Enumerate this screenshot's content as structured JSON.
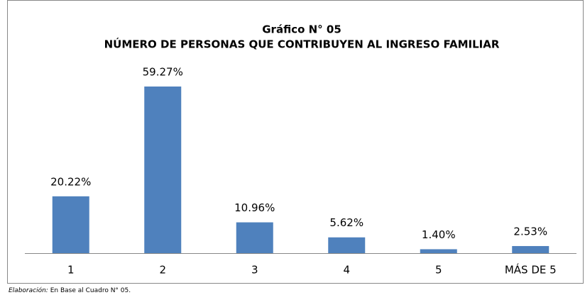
{
  "chart_data": {
    "type": "bar",
    "title": "Gráfico N° 05",
    "subtitle": "NÚMERO DE PERSONAS QUE CONTRIBUYEN AL INGRESO FAMILIAR",
    "categories": [
      "1",
      "2",
      "3",
      "4",
      "5",
      "MÁS DE 5"
    ],
    "values": [
      20.22,
      59.27,
      10.96,
      5.62,
      1.4,
      2.53
    ],
    "value_labels": [
      "20.22%",
      "59.27%",
      "10.96%",
      "5.62%",
      "1.40%",
      "2.53%"
    ],
    "color": "#4f81bd",
    "note_label": "Elaboración:",
    "note_text": "En Base al Cuadro N° 05."
  }
}
